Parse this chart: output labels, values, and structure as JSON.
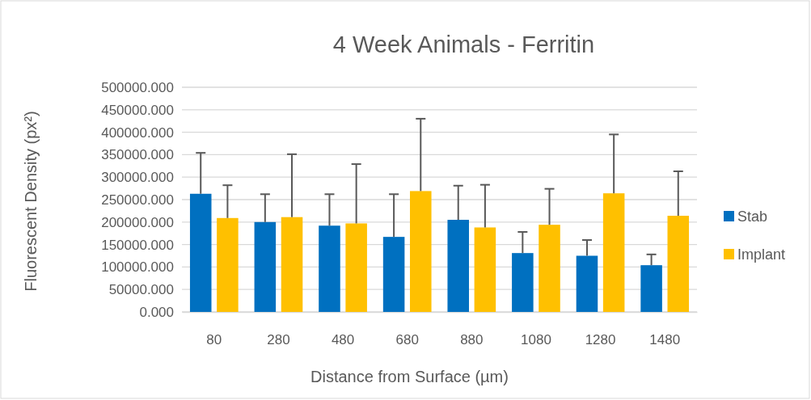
{
  "chart_data": {
    "type": "bar",
    "title": "4 Week Animals - Ferritin",
    "xlabel": "Distance from Surface (µm)",
    "ylabel": "Fluorescent Density (px²)",
    "categories": [
      "80",
      "280",
      "480",
      "680",
      "880",
      "1080",
      "1280",
      "1480"
    ],
    "series": [
      {
        "name": "Stab",
        "color": "#0070c0",
        "values": [
          263000,
          200000,
          192000,
          167000,
          205000,
          131000,
          125000,
          104000
        ],
        "errors": [
          [
            263000,
            354000
          ],
          [
            200000,
            262000
          ],
          [
            192000,
            262000
          ],
          [
            167000,
            262000
          ],
          [
            205000,
            281000
          ],
          [
            131000,
            178000
          ],
          [
            125000,
            160000
          ],
          [
            104000,
            128000
          ]
        ]
      },
      {
        "name": "Implant",
        "color": "#ffc000",
        "values": [
          209000,
          211000,
          197000,
          269000,
          188000,
          194000,
          264000,
          214000
        ],
        "errors": [
          [
            209000,
            282000
          ],
          [
            211000,
            351000
          ],
          [
            197000,
            329000
          ],
          [
            269000,
            430000
          ],
          [
            188000,
            283000
          ],
          [
            194000,
            274000
          ],
          [
            264000,
            395000
          ],
          [
            214000,
            313000
          ]
        ]
      }
    ],
    "ylim": [
      0,
      500000
    ],
    "yticks": [
      {
        "value": 0,
        "label": "0.000"
      },
      {
        "value": 50000,
        "label": "50000.000"
      },
      {
        "value": 100000,
        "label": "100000.000"
      },
      {
        "value": 150000,
        "label": "150000.000"
      },
      {
        "value": 200000,
        "label": "200000.000"
      },
      {
        "value": 250000,
        "label": "250000.000"
      },
      {
        "value": 300000,
        "label": "300000.000"
      },
      {
        "value": 350000,
        "label": "350000.000"
      },
      {
        "value": 400000,
        "label": "400000.000"
      },
      {
        "value": 450000,
        "label": "450000.000"
      },
      {
        "value": 500000,
        "label": "500000.000"
      }
    ],
    "grid": "y",
    "legend": "right"
  }
}
